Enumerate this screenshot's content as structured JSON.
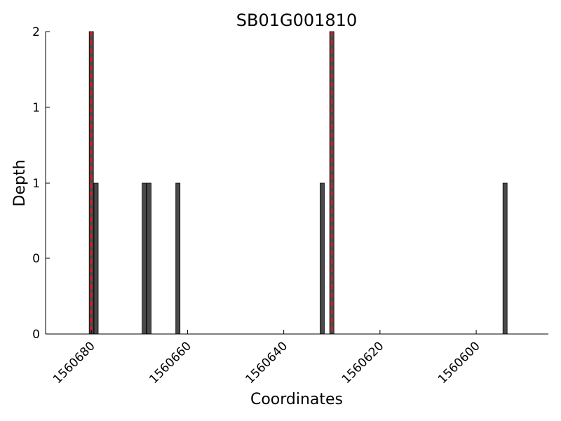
{
  "chart_data": {
    "type": "bar",
    "title": "SB01G001810",
    "xlabel": "Coordinates",
    "ylabel": "Depth",
    "x_axis_direction": "descending",
    "xlim": [
      1560689.5,
      1560585.0
    ],
    "xticks": [
      1560680,
      1560660,
      1560640,
      1560620,
      1560600
    ],
    "xtick_labels": [
      "1560680",
      "1560660",
      "1560640",
      "1560620",
      "1560600"
    ],
    "ytick_labels": [
      "0",
      "0",
      "1",
      "1",
      "2"
    ],
    "ylim": [
      0,
      2
    ],
    "y_scale": "log",
    "bars": [
      {
        "x": 1560680,
        "y": 2.0
      },
      {
        "x": 1560679,
        "y": 1.0
      },
      {
        "x": 1560669,
        "y": 1.0
      },
      {
        "x": 1560668,
        "y": 1.0
      },
      {
        "x": 1560662,
        "y": 1.0
      },
      {
        "x": 1560632,
        "y": 1.0
      },
      {
        "x": 1560630,
        "y": 2.0
      },
      {
        "x": 1560594,
        "y": 1.0
      }
    ],
    "marker_lines": [
      1560680,
      1560630
    ],
    "colors": {
      "bar": "#4a4a4a",
      "bar_edge": "#000000",
      "marker_line": "#e8141c"
    },
    "grid": false,
    "legend": false
  }
}
